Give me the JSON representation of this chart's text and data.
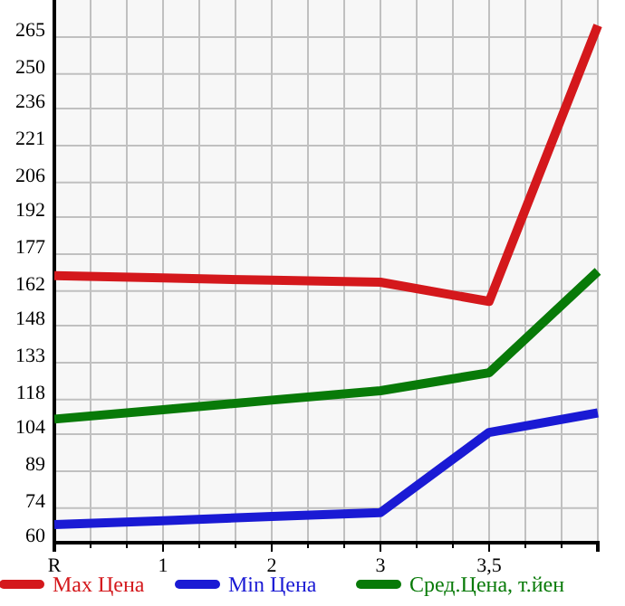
{
  "chart_data": {
    "type": "line",
    "categories": [
      "R",
      "1",
      "2",
      "3",
      "3,5",
      null
    ],
    "series": [
      {
        "name": "Max Цена",
        "color": "#d4181c",
        "values": [
          168.3,
          167.3,
          166.4,
          165.6,
          157.8,
          269.7
        ]
      },
      {
        "name": "Min Цена",
        "color": "#1a1ad4",
        "values": [
          67.3,
          68.9,
          70.6,
          72.2,
          104.7,
          112.6
        ]
      },
      {
        "name": "Сред.Цена, т.йен",
        "color": "#087a08",
        "values": [
          110.1,
          113.9,
          117.8,
          121.6,
          128.9,
          170
        ]
      }
    ],
    "ylim": [
      60,
      280
    ],
    "yticks": [
      60,
      74,
      89,
      104,
      118,
      133,
      148,
      162,
      177,
      192,
      206,
      221,
      236,
      250,
      265
    ],
    "grid": true,
    "legend": "bottom",
    "marker": "none",
    "line_style": "solid"
  }
}
